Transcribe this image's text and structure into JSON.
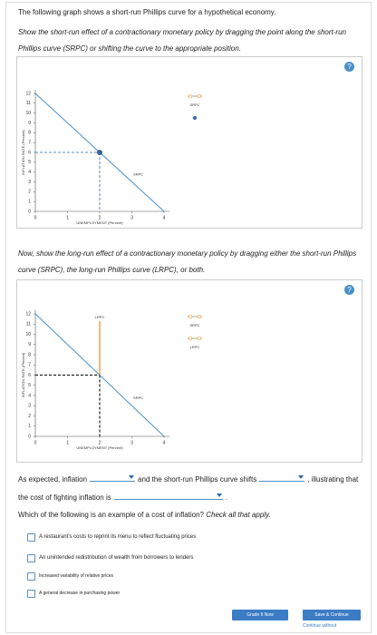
{
  "intro": "The following graph shows a short-run Phillips curve for a hypothetical economy.",
  "task_1": "Show the short-run effect of a contractionary monetary policy by dragging the point along the short-run Phillips curve (SRPC) or shifting the curve to the appropriate position.",
  "graph_1": {
    "help": "?",
    "y_label": "INFLATION RATE (Percent)",
    "x_label": "UNEMPLOYMENT (Percent)",
    "xlim": [
      0,
      4
    ],
    "ylim": [
      0,
      12
    ],
    "xticks": [
      0,
      1,
      2,
      3,
      4
    ],
    "yticks": [
      0,
      1,
      2,
      3,
      4,
      5,
      6,
      7,
      8,
      9,
      10,
      11,
      12
    ],
    "srpc": {
      "label": "SRPC",
      "x": [
        0,
        4
      ],
      "y": [
        12,
        0
      ],
      "color": "#4a90c8"
    },
    "point": {
      "x": 2,
      "y": 6,
      "color": "#2a6ab0"
    },
    "legend": [
      "SRPC"
    ]
  },
  "task_2": "Now, show the long-run effect of a contractionary monetary policy by dragging either the short-run Phillips curve (SRPC), the long-run Phillips curve (LRPC), or both.",
  "graph_2": {
    "help": "?",
    "y_label": "INFLATION RATE (Percent)",
    "x_label": "UNEMPLOYMENT (Percent)",
    "xlim": [
      0,
      4
    ],
    "ylim": [
      0,
      12
    ],
    "xticks": [
      0,
      1,
      2,
      3,
      4
    ],
    "yticks": [
      0,
      1,
      2,
      3,
      4,
      5,
      6,
      7,
      8,
      9,
      10,
      11,
      12
    ],
    "srpc": {
      "label": "SRPC",
      "x": [
        0,
        4
      ],
      "y": [
        12,
        0
      ],
      "color": "#4a90c8"
    },
    "lrpc": {
      "label": "LRPC",
      "x": 2,
      "color": "#e8a33a"
    },
    "guide": {
      "x": 2,
      "y": 6
    },
    "legend": [
      "SRPC",
      "LRPC"
    ]
  },
  "question": {
    "parts": [
      "As expected, inflation",
      "and the short-run Phillips curve shifts",
      ", illustrating that the cost of fighting inflation is",
      "."
    ]
  },
  "mc": {
    "prompt": "Which of the following is an example of a cost of inflation?",
    "note": "Check all that apply.",
    "options": [
      "A restaurant's costs to reprint its menu to reflect fluctuating prices",
      "An unintended redistribution of wealth from borrowers to lenders",
      "Increased variability of relative prices",
      "A general decrease in purchasing power"
    ]
  },
  "buttons": {
    "grade": "Grade It Now",
    "save": "Save & Continue",
    "continue": "Continue without"
  }
}
